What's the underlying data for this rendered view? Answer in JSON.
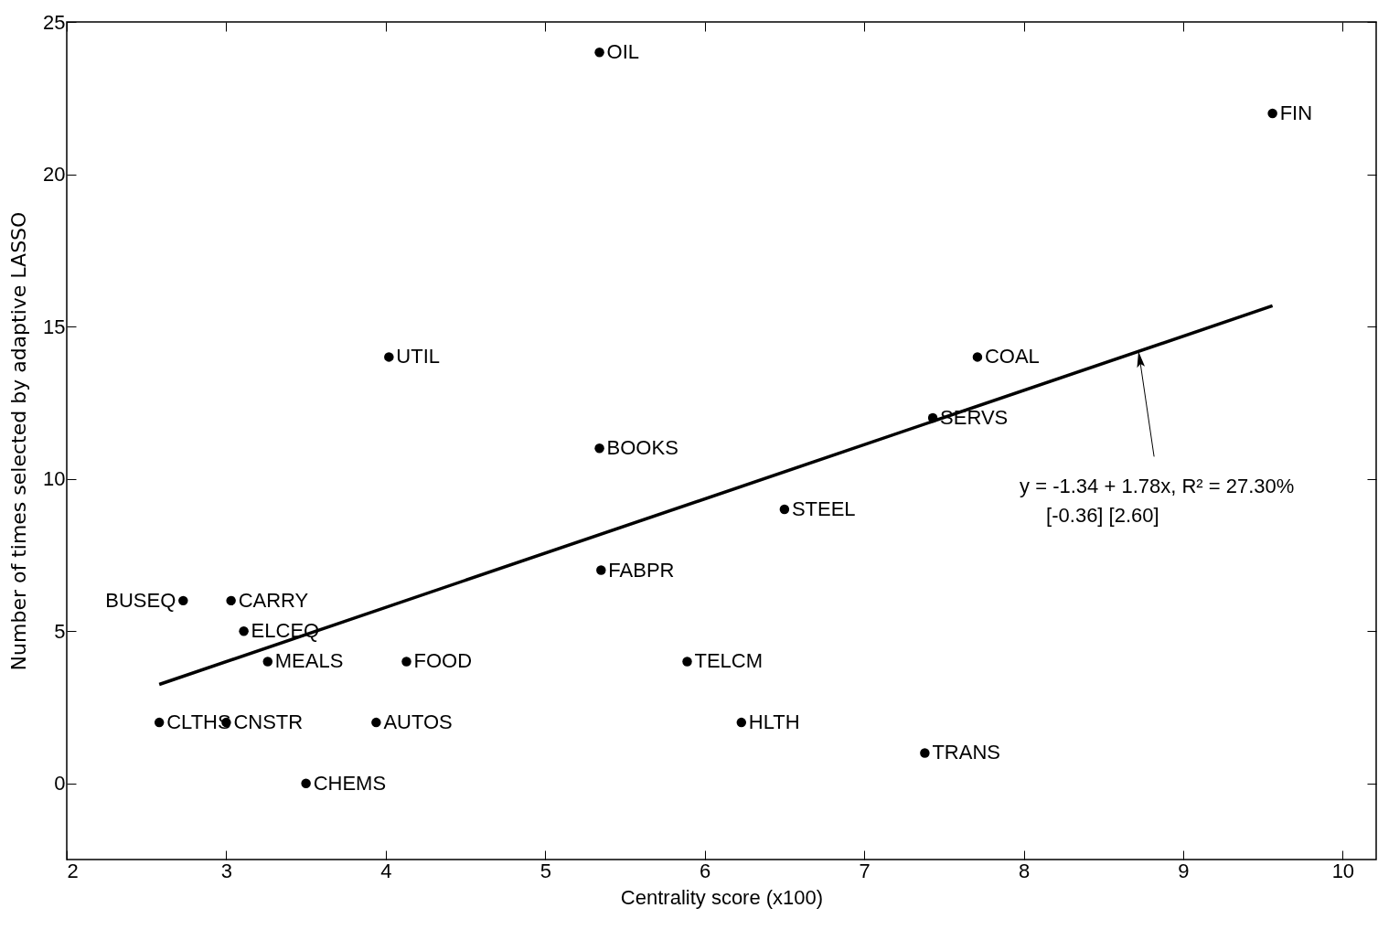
{
  "chart_data": {
    "type": "scatter",
    "xlabel": "Centrality score (x100)",
    "ylabel": "Number of times selected by adaptive LASSO",
    "xlim": [
      2,
      10.21
    ],
    "ylim": [
      -2.5,
      25
    ],
    "xticks": [
      2,
      3,
      4,
      5,
      6,
      7,
      8,
      9,
      10
    ],
    "yticks": [
      0,
      5,
      10,
      15,
      20,
      25
    ],
    "grid": false,
    "marker": "circle",
    "series": [
      {
        "color": "#000000",
        "x": [
          5.34,
          9.56,
          4.02,
          7.71,
          7.43,
          5.34,
          6.5,
          5.35,
          2.73,
          3.03,
          3.11,
          3.26,
          4.13,
          5.89,
          2.58,
          3.0,
          3.94,
          6.23,
          7.38,
          3.5
        ],
        "values": [
          24,
          22,
          14,
          14,
          12,
          11,
          9,
          7,
          6,
          6,
          5,
          4,
          4,
          4,
          2,
          2,
          2,
          2,
          1,
          0
        ]
      },
      {
        "type": "line",
        "color": "#000000",
        "line_style": "solid",
        "marker": "none",
        "x": [
          2.58,
          9.56
        ],
        "values": [
          3.25,
          15.68
        ]
      }
    ],
    "annotations": [
      {
        "text": "OIL",
        "x": 5.34,
        "y": 24
      },
      {
        "text": "FIN",
        "x": 9.56,
        "y": 22
      },
      {
        "text": "UTIL",
        "x": 4.02,
        "y": 14
      },
      {
        "text": "COAL",
        "x": 7.71,
        "y": 14
      },
      {
        "text": "SERVS",
        "x": 7.43,
        "y": 12
      },
      {
        "text": "BOOKS",
        "x": 5.34,
        "y": 11
      },
      {
        "text": "STEEL",
        "x": 6.5,
        "y": 9
      },
      {
        "text": "FABPR",
        "x": 5.35,
        "y": 7
      },
      {
        "text": "BUSEQ",
        "x": 2.73,
        "y": 6
      },
      {
        "text": "CARRY",
        "x": 3.03,
        "y": 6
      },
      {
        "text": "ELCEQ",
        "x": 3.11,
        "y": 5
      },
      {
        "text": "MEALS",
        "x": 3.26,
        "y": 4
      },
      {
        "text": "FOOD",
        "x": 4.13,
        "y": 4
      },
      {
        "text": "TELCM",
        "x": 5.89,
        "y": 4
      },
      {
        "text": "CLTHS",
        "x": 2.58,
        "y": 2
      },
      {
        "text": "CNSTR",
        "x": 3.0,
        "y": 2
      },
      {
        "text": "AUTOS",
        "x": 3.94,
        "y": 2
      },
      {
        "text": "HLTH",
        "x": 6.23,
        "y": 2
      },
      {
        "text": "TRANS",
        "x": 7.38,
        "y": 1
      },
      {
        "text": "CHEMS",
        "x": 3.5,
        "y": 0
      },
      {
        "text": "y = -1.34 + 1.78x, R² = 27.30%",
        "x": 8.72,
        "y": 14.18
      },
      "[-0.36]  [2.60]"
    ]
  }
}
